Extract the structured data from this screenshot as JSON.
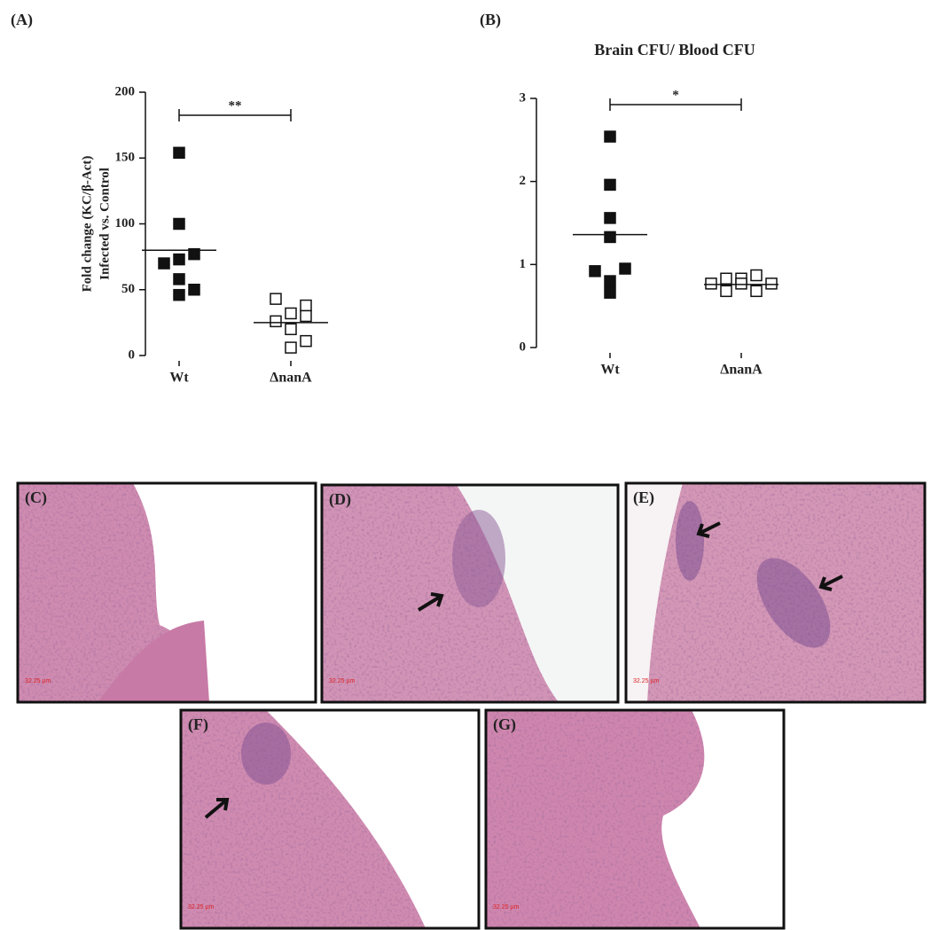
{
  "chart_data": [
    {
      "type": "scatter",
      "panel": "(A)",
      "ylabel": [
        "Fold change (KC/β-Act)",
        "Infected vs. Control"
      ],
      "categories": [
        "Wt",
        "ΔnanA"
      ],
      "values": [
        [
          154,
          100,
          77,
          70,
          73,
          58,
          50,
          46
        ],
        [
          43,
          38,
          32,
          30,
          26,
          20,
          11,
          6
        ]
      ],
      "markers": [
        "filled",
        "open"
      ],
      "medians": [
        80,
        25
      ],
      "significance": "**",
      "ylim": [
        0,
        200
      ],
      "yticks": [
        0,
        50,
        100,
        150,
        200
      ]
    },
    {
      "type": "scatter",
      "panel": "(B)",
      "title": "Brain CFU/ Blood CFU",
      "categories": [
        "Wt",
        "ΔnanA"
      ],
      "values": [
        [
          2.54,
          1.96,
          1.56,
          1.33,
          0.95,
          0.92,
          0.8,
          0.66
        ],
        [
          0.87,
          0.83,
          0.83,
          0.77,
          0.77,
          0.77,
          0.68,
          0.68
        ]
      ],
      "markers": [
        "filled",
        "open"
      ],
      "medians": [
        1.36,
        0.76
      ],
      "significance": "*",
      "ylim": [
        0,
        3
      ],
      "yticks": [
        0,
        1,
        2,
        3
      ]
    }
  ],
  "images": [
    {
      "label": "(C)",
      "scale": "32.25 µm"
    },
    {
      "label": "(D)",
      "scale": "32.25 µm"
    },
    {
      "label": "(E)",
      "scale": "32.25 µm"
    },
    {
      "label": "(F)",
      "scale": "32.25 µm"
    },
    {
      "label": "(G)",
      "scale": "32.25 µm"
    }
  ]
}
